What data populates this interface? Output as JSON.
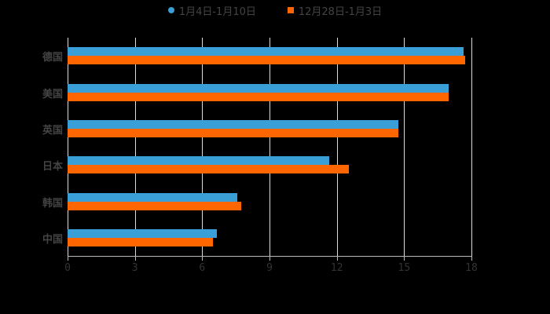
{
  "chart_data": {
    "type": "bar",
    "orientation": "horizontal",
    "title": "",
    "xlabel": "",
    "ylabel": "",
    "categories": [
      "德国",
      "美国",
      "英国",
      "日本",
      "韩国",
      "中国"
    ],
    "series": [
      {
        "name": "1月4日-1月10日",
        "color": "#3a9fd6",
        "values": [
          17.65,
          16.98,
          14.74,
          11.66,
          7.56,
          6.65
        ]
      },
      {
        "name": "12月28日-1月3日",
        "color": "#ff6600",
        "values": [
          17.72,
          16.98,
          14.74,
          12.54,
          7.74,
          6.48
        ]
      }
    ],
    "xlim": [
      0,
      18
    ],
    "xticks": [
      "0",
      "3",
      "6",
      "9",
      "12",
      "15",
      "18"
    ],
    "grid": true,
    "legend_position": "top"
  }
}
